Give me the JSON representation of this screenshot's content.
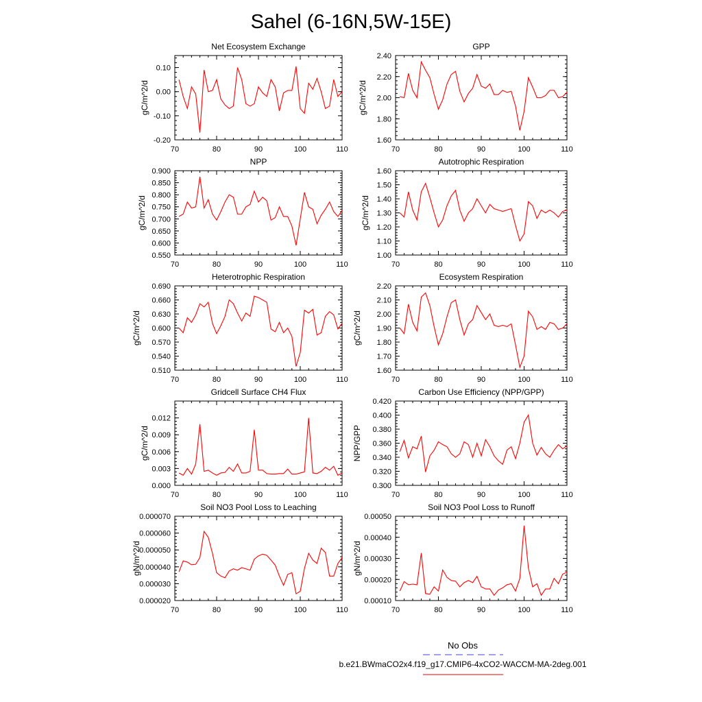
{
  "figure": {
    "title": "Sahel (6-16N,5W-15E)",
    "legend": [
      {
        "label": "No Obs",
        "color": "#6666dd",
        "style": "dashed"
      },
      {
        "label": "b.e21.BWmaCO2x4.f19_g17.CMIP6-4xCO2-WACCM-MA-2deg.001",
        "color": "#ee3333",
        "style": "solid"
      }
    ],
    "line_color": "#ff0000"
  },
  "chart_data": [
    {
      "type": "line",
      "title": "Net Ecosystem Exchange",
      "ylabel": "gC/m^2/d",
      "xlim": [
        70,
        110
      ],
      "ylim": [
        -0.2,
        0.15
      ],
      "xticks": [
        70,
        80,
        90,
        100,
        110
      ],
      "xtick_labels": [
        "70",
        "80",
        "90",
        "100",
        "110"
      ],
      "yticks": [
        -0.2,
        -0.1,
        0.0,
        0.1
      ],
      "ytick_labels": [
        "-0.20",
        "-0.10",
        "0.00",
        "0.10"
      ],
      "x_start": 71,
      "values": [
        0.05,
        -0.02,
        -0.07,
        0.02,
        -0.01,
        -0.17,
        0.09,
        0.0,
        0.005,
        0.05,
        -0.03,
        -0.055,
        -0.07,
        -0.06,
        0.1,
        0.05,
        -0.05,
        -0.06,
        -0.05,
        0.02,
        -0.005,
        -0.02,
        0.05,
        0.02,
        -0.08,
        -0.005,
        0.005,
        0.005,
        0.105,
        -0.07,
        -0.09,
        0.035,
        0.01,
        0.055,
        0.0,
        -0.07,
        -0.06,
        0.05,
        -0.02,
        0.0
      ]
    },
    {
      "type": "line",
      "title": "GPP",
      "ylabel": "gC/m^2/d",
      "xlim": [
        70,
        110
      ],
      "ylim": [
        1.6,
        2.4
      ],
      "xticks": [
        70,
        80,
        90,
        100,
        110
      ],
      "xtick_labels": [
        "70",
        "80",
        "90",
        "100",
        "110"
      ],
      "yticks": [
        1.6,
        1.8,
        2.0,
        2.2,
        2.4
      ],
      "ytick_labels": [
        "1.60",
        "1.80",
        "2.00",
        "2.20",
        "2.40"
      ],
      "x_start": 71,
      "values": [
        2.01,
        2.0,
        2.23,
        2.07,
        2.0,
        2.34,
        2.26,
        2.19,
        2.03,
        1.89,
        1.98,
        2.13,
        2.22,
        2.25,
        2.06,
        1.96,
        2.04,
        2.09,
        2.22,
        2.11,
        2.09,
        2.13,
        2.03,
        2.03,
        2.07,
        2.05,
        2.06,
        1.92,
        1.69,
        1.87,
        2.19,
        2.1,
        2.0,
        2.0,
        2.02,
        2.07,
        2.07,
        2.0,
        2.01,
        2.05
      ]
    },
    {
      "type": "line",
      "title": "NPP",
      "ylabel": "gC/m^2/d",
      "xlim": [
        70,
        110
      ],
      "ylim": [
        0.55,
        0.9
      ],
      "xticks": [
        70,
        80,
        90,
        100,
        110
      ],
      "xtick_labels": [
        "70",
        "80",
        "90",
        "100",
        "110"
      ],
      "yticks": [
        0.55,
        0.6,
        0.65,
        0.7,
        0.75,
        0.8,
        0.85,
        0.9
      ],
      "ytick_labels": [
        "0.550",
        "0.600",
        "0.650",
        "0.700",
        "0.750",
        "0.800",
        "0.850",
        "0.900"
      ],
      "x_start": 71,
      "values": [
        0.71,
        0.72,
        0.77,
        0.745,
        0.75,
        0.875,
        0.745,
        0.78,
        0.72,
        0.695,
        0.73,
        0.77,
        0.8,
        0.79,
        0.72,
        0.72,
        0.75,
        0.76,
        0.815,
        0.77,
        0.79,
        0.775,
        0.695,
        0.705,
        0.75,
        0.71,
        0.71,
        0.67,
        0.59,
        0.7,
        0.81,
        0.75,
        0.74,
        0.68,
        0.715,
        0.74,
        0.77,
        0.73,
        0.71,
        0.735
      ]
    },
    {
      "type": "line",
      "title": "Autotrophic Respiration",
      "ylabel": "gC/m^2/d",
      "xlim": [
        70,
        110
      ],
      "ylim": [
        1.0,
        1.6
      ],
      "xticks": [
        70,
        80,
        90,
        100,
        110
      ],
      "xtick_labels": [
        "70",
        "80",
        "90",
        "100",
        "110"
      ],
      "yticks": [
        1.0,
        1.1,
        1.2,
        1.3,
        1.4,
        1.5,
        1.6
      ],
      "ytick_labels": [
        "1.00",
        "1.10",
        "1.20",
        "1.30",
        "1.40",
        "1.50",
        "1.60"
      ],
      "x_start": 71,
      "values": [
        1.3,
        1.27,
        1.45,
        1.32,
        1.25,
        1.45,
        1.51,
        1.41,
        1.3,
        1.2,
        1.25,
        1.35,
        1.42,
        1.46,
        1.32,
        1.24,
        1.3,
        1.33,
        1.4,
        1.35,
        1.3,
        1.36,
        1.33,
        1.32,
        1.31,
        1.32,
        1.33,
        1.21,
        1.1,
        1.15,
        1.38,
        1.35,
        1.26,
        1.32,
        1.3,
        1.32,
        1.3,
        1.27,
        1.31,
        1.32
      ]
    },
    {
      "type": "line",
      "title": "Heterotrophic Respiration",
      "ylabel": "gC/m^2/d",
      "xlim": [
        70,
        110
      ],
      "ylim": [
        0.51,
        0.69
      ],
      "xticks": [
        70,
        80,
        90,
        100,
        110
      ],
      "xtick_labels": [
        "70",
        "80",
        "90",
        "100",
        "110"
      ],
      "yticks": [
        0.51,
        0.54,
        0.57,
        0.6,
        0.63,
        0.66,
        0.69
      ],
      "ytick_labels": [
        "0.510",
        "0.540",
        "0.570",
        "0.600",
        "0.630",
        "0.660",
        "0.690"
      ],
      "x_start": 71,
      "values": [
        0.6,
        0.59,
        0.622,
        0.612,
        0.628,
        0.652,
        0.645,
        0.655,
        0.61,
        0.588,
        0.605,
        0.625,
        0.66,
        0.652,
        0.632,
        0.615,
        0.632,
        0.625,
        0.668,
        0.665,
        0.66,
        0.655,
        0.598,
        0.592,
        0.612,
        0.59,
        0.6,
        0.582,
        0.518,
        0.548,
        0.638,
        0.632,
        0.64,
        0.585,
        0.59,
        0.625,
        0.635,
        0.628,
        0.598,
        0.61
      ]
    },
    {
      "type": "line",
      "title": "Ecosystem Respiration",
      "ylabel": "gC/m^2/d",
      "xlim": [
        70,
        110
      ],
      "ylim": [
        1.6,
        2.2
      ],
      "xticks": [
        70,
        80,
        90,
        100,
        110
      ],
      "xtick_labels": [
        "70",
        "80",
        "90",
        "100",
        "110"
      ],
      "yticks": [
        1.6,
        1.7,
        1.8,
        1.9,
        2.0,
        2.1,
        2.2
      ],
      "ytick_labels": [
        "1.60",
        "1.70",
        "1.80",
        "1.90",
        "2.00",
        "2.10",
        "2.20"
      ],
      "x_start": 71,
      "values": [
        1.9,
        1.86,
        2.07,
        1.94,
        1.88,
        2.12,
        2.15,
        2.06,
        1.91,
        1.78,
        1.86,
        1.98,
        2.08,
        2.1,
        1.96,
        1.85,
        1.93,
        1.96,
        2.06,
        2.01,
        1.96,
        2.0,
        1.92,
        1.91,
        1.92,
        1.91,
        1.93,
        1.78,
        1.62,
        1.7,
        2.02,
        1.98,
        1.89,
        1.91,
        1.89,
        1.94,
        1.93,
        1.89,
        1.9,
        1.93
      ]
    },
    {
      "type": "line",
      "title": "Gridcell Surface CH4 Flux",
      "ylabel": "gC/m^2/d",
      "xlim": [
        70,
        110
      ],
      "ylim": [
        0.0,
        0.015
      ],
      "xticks": [
        70,
        80,
        90,
        100,
        110
      ],
      "xtick_labels": [
        "70",
        "80",
        "90",
        "100",
        "110"
      ],
      "yticks": [
        0.0,
        0.003,
        0.006,
        0.009,
        0.012
      ],
      "ytick_labels": [
        "0.000",
        "0.003",
        "0.006",
        "0.009",
        "0.012"
      ],
      "x_start": 71,
      "values": [
        0.0022,
        0.0018,
        0.003,
        0.002,
        0.0038,
        0.0109,
        0.0025,
        0.0027,
        0.0022,
        0.0018,
        0.0022,
        0.0023,
        0.0032,
        0.0025,
        0.0038,
        0.0022,
        0.0022,
        0.0025,
        0.0099,
        0.0027,
        0.0027,
        0.0021,
        0.002,
        0.002,
        0.0021,
        0.0021,
        0.0029,
        0.002,
        0.002,
        0.0022,
        0.0024,
        0.012,
        0.0022,
        0.0021,
        0.0025,
        0.0032,
        0.0027,
        0.0034,
        0.0018,
        0.0022
      ]
    },
    {
      "type": "line",
      "title": "Carbon Use Efficiency (NPP/GPP)",
      "ylabel": "NPP/GPP",
      "xlim": [
        70,
        110
      ],
      "ylim": [
        0.3,
        0.42
      ],
      "xticks": [
        70,
        80,
        90,
        100,
        110
      ],
      "xtick_labels": [
        "70",
        "80",
        "90",
        "100",
        "110"
      ],
      "yticks": [
        0.3,
        0.32,
        0.34,
        0.36,
        0.38,
        0.4,
        0.42
      ],
      "ytick_labels": [
        "0.300",
        "0.320",
        "0.340",
        "0.360",
        "0.380",
        "0.400",
        "0.420"
      ],
      "x_start": 71,
      "values": [
        0.348,
        0.364,
        0.339,
        0.355,
        0.352,
        0.37,
        0.319,
        0.342,
        0.35,
        0.362,
        0.358,
        0.355,
        0.345,
        0.34,
        0.345,
        0.362,
        0.358,
        0.34,
        0.36,
        0.342,
        0.365,
        0.355,
        0.342,
        0.335,
        0.33,
        0.35,
        0.355,
        0.338,
        0.36,
        0.39,
        0.4,
        0.36,
        0.343,
        0.354,
        0.345,
        0.34,
        0.35,
        0.358,
        0.352,
        0.356
      ]
    },
    {
      "type": "line",
      "title": "Soil NO3 Pool Loss to Leaching",
      "ylabel": "gN/m^2/d",
      "xlim": [
        70,
        110
      ],
      "ylim": [
        2e-05,
        7e-05
      ],
      "xticks": [
        70,
        80,
        90,
        100,
        110
      ],
      "xtick_labels": [
        "70",
        "80",
        "90",
        "100",
        "110"
      ],
      "yticks": [
        2e-05,
        3e-05,
        4e-05,
        5e-05,
        6e-05,
        7e-05
      ],
      "ytick_labels": [
        "0.000020",
        "0.000030",
        "0.000040",
        "0.000050",
        "0.000060",
        "0.000070"
      ],
      "x_start": 71,
      "values": [
        3.7e-05,
        4.35e-05,
        4.28e-05,
        4.12e-05,
        4.15e-05,
        4.55e-05,
        6.1e-05,
        5.75e-05,
        4.8e-05,
        3.65e-05,
        3.45e-05,
        3.35e-05,
        3.75e-05,
        3.88e-05,
        3.8e-05,
        3.95e-05,
        3.88e-05,
        3.8e-05,
        4.45e-05,
        4.65e-05,
        4.75e-05,
        4.68e-05,
        4.4e-05,
        4.1e-05,
        3.45e-05,
        2.9e-05,
        3.55e-05,
        3.65e-05,
        2.4e-05,
        2.55e-05,
        3.9e-05,
        4.8e-05,
        4.4e-05,
        4.2e-05,
        5.1e-05,
        4.85e-05,
        3.45e-05,
        3.45e-05,
        4.2e-05,
        4.55e-05
      ]
    },
    {
      "type": "line",
      "title": "Soil NO3 Pool Loss to Runoff",
      "ylabel": "gN/m^2/d",
      "xlim": [
        70,
        110
      ],
      "ylim": [
        0.0001,
        0.0005
      ],
      "xticks": [
        70,
        80,
        90,
        100,
        110
      ],
      "xtick_labels": [
        "70",
        "80",
        "90",
        "100",
        "110"
      ],
      "yticks": [
        0.0001,
        0.0002,
        0.0003,
        0.0004,
        0.0005
      ],
      "ytick_labels": [
        "0.00010",
        "0.00020",
        "0.00030",
        "0.00040",
        "0.00050"
      ],
      "x_start": 71,
      "values": [
        0.000145,
        0.00019,
        0.000175,
        0.000178,
        0.000175,
        0.000325,
        0.000133,
        0.00013,
        0.000165,
        0.000145,
        0.000245,
        0.00021,
        0.000195,
        0.000192,
        0.000165,
        0.000185,
        0.000195,
        0.000185,
        0.000215,
        0.000165,
        0.000155,
        0.000155,
        0.000125,
        0.00015,
        0.00016,
        0.000175,
        0.00018,
        0.000145,
        0.000205,
        0.000455,
        0.000255,
        0.000165,
        0.00018,
        0.000125,
        0.000155,
        0.000155,
        0.000205,
        0.00018,
        0.000225,
        0.000235
      ]
    }
  ]
}
